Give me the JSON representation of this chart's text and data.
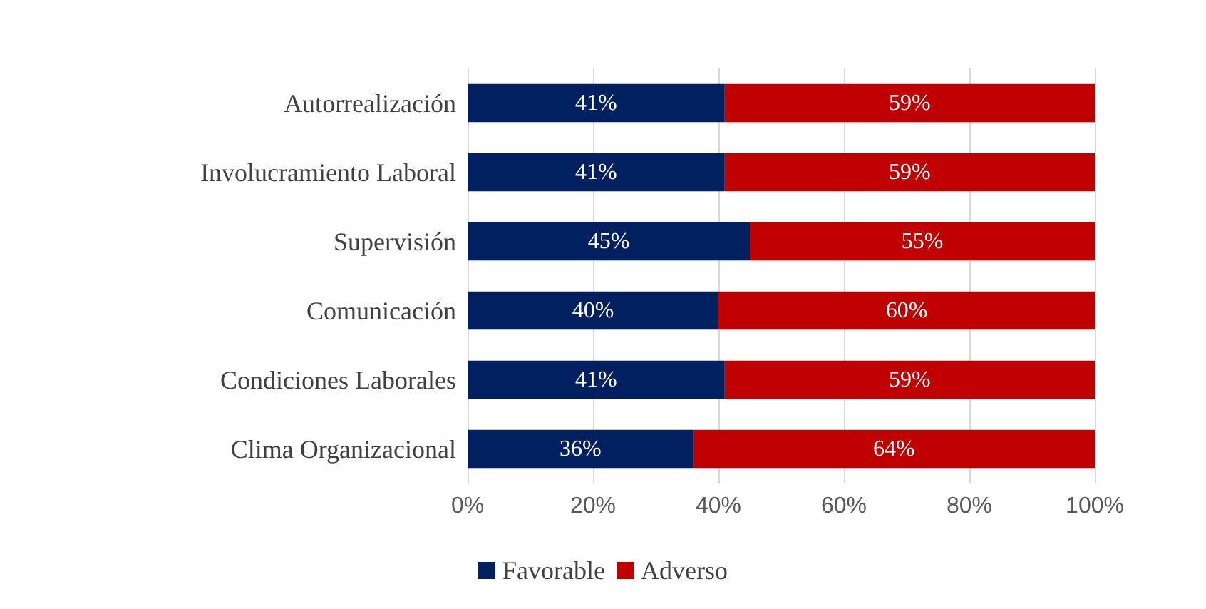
{
  "chart_data": {
    "type": "bar",
    "orientation": "horizontal",
    "stacked": true,
    "categories": [
      "Autorrealización",
      "Involucramiento Laboral",
      "Supervisión",
      "Comunicación",
      "Condiciones Laborales",
      "Clima Organizacional"
    ],
    "series": [
      {
        "name": "Favorable",
        "color": "#002060",
        "values": [
          41,
          41,
          45,
          40,
          41,
          36
        ],
        "value_labels": [
          "41%",
          "41%",
          "45%",
          "40%",
          "41%",
          "36%"
        ]
      },
      {
        "name": "Adverso",
        "color": "#c00000",
        "values": [
          59,
          59,
          55,
          60,
          59,
          64
        ],
        "value_labels": [
          "59%",
          "59%",
          "55%",
          "60%",
          "59%",
          "64%"
        ]
      }
    ],
    "xlim": [
      0,
      100
    ],
    "xticks": [
      {
        "value": 0,
        "label": "0%"
      },
      {
        "value": 20,
        "label": "20%"
      },
      {
        "value": 40,
        "label": "40%"
      },
      {
        "value": 60,
        "label": "60%"
      },
      {
        "value": 80,
        "label": "80%"
      },
      {
        "value": 100,
        "label": "100%"
      }
    ],
    "grid": "x",
    "legend": "bottom"
  }
}
